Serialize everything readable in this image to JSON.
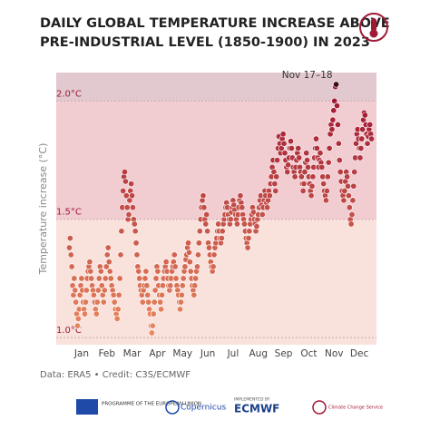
{
  "chart_data": {
    "type": "scatter",
    "title": [
      "DAILY GLOBAL TEMPERATURE INCREASE ABOVE",
      "PRE-INDUSTRIAL LEVEL (1850-1900) IN 2023"
    ],
    "y_label": "Temperature increase (°C)",
    "annotation": "Nov 17–18",
    "source": "Data: ERA5 • Credit: C3S/ECMWF",
    "categories": [
      "Jan",
      "Feb",
      "Mar",
      "Apr",
      "May",
      "Jun",
      "Jul",
      "Aug",
      "Sep",
      "Oct",
      "Nov",
      "Dec"
    ],
    "values": [
      [
        1.38,
        1.42,
        1.35,
        1.3,
        1.22,
        1.18,
        1.25,
        1.2,
        1.15,
        1.1,
        1.05,
        1.08,
        1.12,
        1.18,
        1.22,
        1.25,
        1.2,
        1.15,
        1.12,
        1.1,
        1.15,
        1.2,
        1.25,
        1.28,
        1.3,
        1.32,
        1.28,
        1.25,
        1.22,
        1.2,
        1.18
      ],
      [
        1.15,
        1.12,
        1.1,
        1.15,
        1.2,
        1.25,
        1.3,
        1.28,
        1.22,
        1.18,
        1.15,
        1.2,
        1.25,
        1.3,
        1.35,
        1.38,
        1.32,
        1.28,
        1.25,
        1.22,
        1.2,
        1.18,
        1.15,
        1.12,
        1.1,
        1.08,
        1.12,
        1.18
      ],
      [
        1.25,
        1.35,
        1.45,
        1.55,
        1.62,
        1.68,
        1.7,
        1.66,
        1.6,
        1.55,
        1.5,
        1.52,
        1.58,
        1.62,
        1.65,
        1.6,
        1.55,
        1.5,
        1.48,
        1.45,
        1.4,
        1.35,
        1.3,
        1.28,
        1.25,
        1.22,
        1.2,
        1.18,
        1.15,
        1.2,
        1.22
      ],
      [
        1.25,
        1.28,
        1.22,
        1.18,
        1.15,
        1.12,
        1.1,
        1.05,
        1.02,
        1.05,
        1.1,
        1.15,
        1.2,
        1.25,
        1.3,
        1.28,
        1.22,
        1.18,
        1.15,
        1.12,
        1.18,
        1.22,
        1.25,
        1.28,
        1.3,
        1.32,
        1.28,
        1.25,
        1.22,
        1.2
      ],
      [
        1.22,
        1.25,
        1.28,
        1.3,
        1.32,
        1.35,
        1.3,
        1.25,
        1.22,
        1.2,
        1.18,
        1.15,
        1.12,
        1.15,
        1.18,
        1.22,
        1.25,
        1.28,
        1.3,
        1.33,
        1.35,
        1.38,
        1.4,
        1.36,
        1.32,
        1.28,
        1.25,
        1.22,
        1.2,
        1.18,
        1.22
      ],
      [
        1.25,
        1.28,
        1.3,
        1.35,
        1.4,
        1.45,
        1.5,
        1.55,
        1.58,
        1.6,
        1.55,
        1.5,
        1.48,
        1.52,
        1.45,
        1.4,
        1.38,
        1.35,
        1.32,
        1.3,
        1.28,
        1.3,
        1.35,
        1.38,
        1.4,
        1.42,
        1.45,
        1.48,
        1.45,
        1.42
      ],
      [
        1.4,
        1.42,
        1.45,
        1.48,
        1.5,
        1.52,
        1.55,
        1.57,
        1.55,
        1.52,
        1.5,
        1.48,
        1.5,
        1.53,
        1.55,
        1.58,
        1.56,
        1.54,
        1.52,
        1.5,
        1.48,
        1.52,
        1.55,
        1.58,
        1.6,
        1.57,
        1.55,
        1.52,
        1.5,
        1.48,
        1.45
      ],
      [
        1.42,
        1.4,
        1.38,
        1.42,
        1.45,
        1.48,
        1.5,
        1.52,
        1.55,
        1.53,
        1.5,
        1.48,
        1.45,
        1.47,
        1.5,
        1.52,
        1.55,
        1.58,
        1.6,
        1.56,
        1.52,
        1.55,
        1.58,
        1.62,
        1.6,
        1.57,
        1.55,
        1.58,
        1.62,
        1.6,
        1.65
      ],
      [
        1.68,
        1.72,
        1.75,
        1.7,
        1.65,
        1.62,
        1.68,
        1.75,
        1.8,
        1.85,
        1.82,
        1.78,
        1.8,
        1.84,
        1.86,
        1.82,
        1.78,
        1.75,
        1.72,
        1.7,
        1.73,
        1.76,
        1.8,
        1.83,
        1.8,
        1.76,
        1.72,
        1.7,
        1.68,
        1.72
      ],
      [
        1.75,
        1.78,
        1.8,
        1.76,
        1.72,
        1.7,
        1.68,
        1.65,
        1.62,
        1.65,
        1.7,
        1.74,
        1.78,
        1.75,
        1.72,
        1.68,
        1.65,
        1.62,
        1.6,
        1.64,
        1.68,
        1.72,
        1.76,
        1.8,
        1.84,
        1.8,
        1.76,
        1.72,
        1.75,
        1.78,
        1.74
      ],
      [
        1.72,
        1.68,
        1.65,
        1.62,
        1.6,
        1.58,
        1.62,
        1.68,
        1.74,
        1.8,
        1.86,
        1.9,
        1.88,
        1.92,
        1.96,
        2.0,
        2.06,
        2.07,
        1.98,
        1.9,
        1.82,
        1.75,
        1.7,
        1.66,
        1.62,
        1.6,
        1.58,
        1.62,
        1.66,
        1.7
      ],
      [
        1.68,
        1.64,
        1.6,
        1.55,
        1.5,
        1.48,
        1.52,
        1.58,
        1.64,
        1.7,
        1.76,
        1.82,
        1.86,
        1.88,
        1.84,
        1.8,
        1.76,
        1.8,
        1.84,
        1.88,
        1.92,
        1.95,
        1.94,
        1.9,
        1.86,
        1.82,
        1.85,
        1.88,
        1.9,
        1.86,
        1.84
      ]
    ],
    "ylim": [
      0.97,
      2.12
    ],
    "yticks": [
      {
        "value": 1.0,
        "label": "1.0°C"
      },
      {
        "value": 1.5,
        "label": "1.5°C"
      },
      {
        "value": 2.0,
        "label": "2.0°C"
      }
    ],
    "band_colors": [
      "#f9e1dc",
      "#f1ccd1",
      "#e2c9cf"
    ],
    "color_range": [
      "#ea8a5e",
      "#a11a35"
    ],
    "highlight_color": "#3b0c12"
  },
  "footer": {
    "eu": "PROGRAMME OF THE EUROPEAN UNION",
    "copernicus": "Copernicus",
    "implemented": "IMPLEMENTED BY",
    "ecmwf": "ECMWF",
    "c3s": "Climate Change Service"
  }
}
